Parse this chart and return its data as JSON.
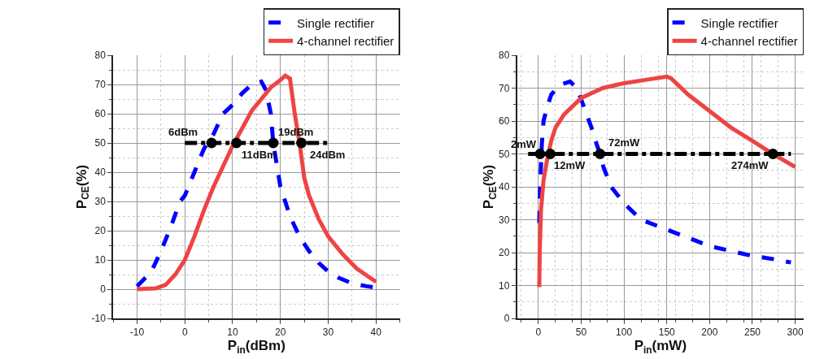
{
  "chart_data": [
    {
      "type": "line",
      "xlabel": "P$_{in}$(dBm)",
      "ylabel": "P$_{CE}$(%)",
      "xlim": [
        -15,
        45
      ],
      "xticks": [
        -10,
        0,
        10,
        20,
        30,
        40
      ],
      "ylim": [
        -10,
        80
      ],
      "yticks": [
        -10,
        0,
        10,
        20,
        30,
        40,
        50,
        60,
        70,
        80
      ],
      "grid": true,
      "legend": "top right",
      "series": [
        {
          "name": "Single rectifier",
          "color": "#0000ff",
          "line_style": "dashed",
          "x": [
            -10,
            -7,
            -5,
            -3,
            -1,
            0,
            2,
            4,
            6,
            8,
            10,
            12,
            14,
            16,
            17,
            18,
            18.5,
            19,
            20,
            22,
            24,
            26,
            28,
            30,
            32,
            35,
            38,
            40
          ],
          "values": [
            1,
            6,
            13,
            21,
            30,
            32,
            40,
            48,
            53,
            60,
            63,
            67,
            70,
            71,
            68,
            60,
            50,
            45,
            35,
            25,
            18,
            13,
            9,
            6,
            4,
            2,
            1,
            0.5
          ]
        },
        {
          "name": "4-channel rectifier",
          "color": "#ee4444",
          "line_style": "solid",
          "x": [
            -10,
            -6,
            -4,
            -2,
            0,
            2,
            4,
            6,
            8,
            10,
            12,
            14,
            16,
            18,
            20,
            21,
            22,
            23,
            24,
            25,
            26,
            28,
            30,
            33,
            36,
            40
          ],
          "values": [
            0,
            0.3,
            1.5,
            5,
            10,
            18,
            27,
            35,
            42,
            49,
            55,
            61,
            65,
            69,
            71.5,
            73,
            72,
            60,
            50,
            38,
            32,
            24,
            18,
            12,
            7,
            2.5
          ]
        },
        {
          "color": "#000000",
          "line_style": "dashdot",
          "x": [
            0,
            30
          ],
          "values": [
            50,
            50
          ]
        },
        {
          "type": "scatter",
          "marker": "circle",
          "color": "#000000",
          "x": [
            5.6,
            10.8,
            18.5,
            24.4
          ],
          "values": [
            50,
            50,
            50,
            50
          ]
        }
      ],
      "annotations": [
        {
          "text": "6dBm",
          "x": 5.6,
          "y": 50
        },
        {
          "text": "11dBm",
          "x": 10.8,
          "y": 50
        },
        {
          "text": "19dBm",
          "x": 18.5,
          "y": 50
        },
        {
          "text": "24dBm",
          "x": 24.4,
          "y": 50
        }
      ]
    },
    {
      "type": "line",
      "xlabel": "P$_{in}$(mW)",
      "ylabel": "P$_{CE}$(%)",
      "xlim": [
        -25,
        310
      ],
      "xticks": [
        0,
        50,
        100,
        150,
        200,
        250,
        300
      ],
      "ylim": [
        0,
        80
      ],
      "yticks": [
        0,
        10,
        20,
        30,
        40,
        50,
        60,
        70,
        80
      ],
      "grid": true,
      "legend": "top right",
      "series": [
        {
          "name": "Single rectifier",
          "color": "#0000ff",
          "line_style": "dashed",
          "x": [
            1,
            2,
            4,
            6,
            10,
            15,
            25,
            37,
            45,
            55,
            62,
            68,
            72,
            76,
            85,
            100,
            120,
            150,
            170,
            200,
            225,
            250,
            275,
            295
          ],
          "values": [
            29,
            40,
            53,
            60,
            64,
            68,
            71,
            72,
            70,
            63,
            58,
            53,
            50,
            46,
            40,
            35,
            30,
            27,
            25,
            22,
            20.5,
            19,
            18,
            17
          ]
        },
        {
          "name": "4-channel rectifier",
          "color": "#ee4444",
          "line_style": "solid",
          "x": [
            1,
            1.5,
            3,
            6,
            10,
            15,
            20,
            30,
            50,
            75,
            100,
            125,
            150,
            155,
            175,
            200,
            225,
            250,
            274,
            300
          ],
          "values": [
            9.5,
            20,
            33,
            42,
            48,
            54,
            58,
            62,
            67,
            70,
            71.5,
            72.5,
            73.5,
            73,
            68,
            63,
            58,
            54,
            50,
            46
          ]
        },
        {
          "color": "#000000",
          "line_style": "dashdot",
          "x": [
            -12,
            295
          ],
          "values": [
            50,
            50
          ]
        },
        {
          "type": "scatter",
          "marker": "circle",
          "color": "#000000",
          "x": [
            2,
            14,
            72,
            274
          ],
          "values": [
            50,
            50,
            50,
            50
          ]
        }
      ],
      "annotations": [
        {
          "text": "2mW",
          "x": 2,
          "y": 50
        },
        {
          "text": "12mW",
          "x": 14,
          "y": 50
        },
        {
          "text": "72mW",
          "x": 72,
          "y": 50
        },
        {
          "text": "274mW",
          "x": 274,
          "y": 50
        }
      ]
    }
  ]
}
